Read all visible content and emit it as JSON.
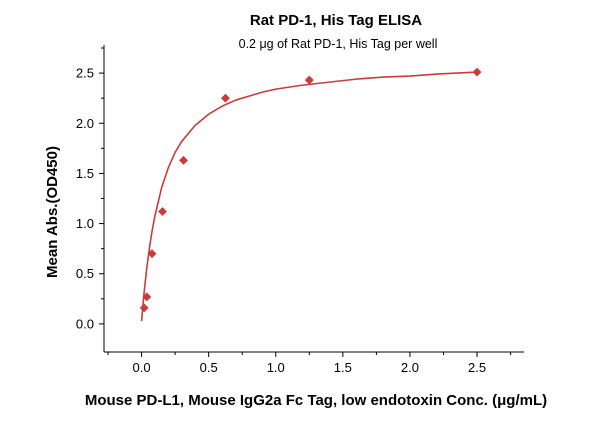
{
  "chart_data": {
    "type": "scatter",
    "title": "Rat PD-1, His Tag ELISA",
    "subtitle": "0.2 μg of Rat PD-1, His Tag per well",
    "xlabel": "Mouse PD-L1, Mouse IgG2a Fc Tag, low endotoxin Conc. (μg/mL)",
    "ylabel": "Mean Abs.(OD450)",
    "xlim": [
      -0.28,
      2.85
    ],
    "ylim": [
      -0.28,
      2.78
    ],
    "x_ticks": [
      0.0,
      0.5,
      1.0,
      1.5,
      2.0,
      2.5
    ],
    "x_tick_labels": [
      "0.0",
      "0.5",
      "1.0",
      "1.5",
      "2.0",
      "2.5"
    ],
    "y_ticks": [
      0.0,
      0.5,
      1.0,
      1.5,
      2.0,
      2.5
    ],
    "y_tick_labels": [
      "0.0",
      "0.5",
      "1.0",
      "1.5",
      "2.0",
      "2.5"
    ],
    "grid": false,
    "series": [
      {
        "points": [
          {
            "x": 0.0195,
            "y": 0.16
          },
          {
            "x": 0.039,
            "y": 0.27
          },
          {
            "x": 0.078,
            "y": 0.7
          },
          {
            "x": 0.156,
            "y": 1.12
          },
          {
            "x": 0.3125,
            "y": 1.63
          },
          {
            "x": 0.625,
            "y": 2.25
          },
          {
            "x": 1.25,
            "y": 2.43
          },
          {
            "x": 2.5,
            "y": 2.51
          }
        ],
        "fit_curve": {
          "x": [
            0.0,
            0.02,
            0.04,
            0.06,
            0.08,
            0.1,
            0.15,
            0.2,
            0.25,
            0.3,
            0.4,
            0.5,
            0.6,
            0.7,
            0.8,
            0.9,
            1.0,
            1.2,
            1.4,
            1.6,
            1.8,
            2.0,
            2.2,
            2.5
          ],
          "y": [
            0.03,
            0.33,
            0.57,
            0.77,
            0.94,
            1.08,
            1.36,
            1.56,
            1.71,
            1.82,
            1.98,
            2.09,
            2.17,
            2.23,
            2.27,
            2.31,
            2.34,
            2.38,
            2.41,
            2.44,
            2.46,
            2.47,
            2.49,
            2.51
          ]
        }
      }
    ]
  },
  "colors": {
    "series": "#c83c3c",
    "axis": "#000000",
    "text": "#000000"
  }
}
